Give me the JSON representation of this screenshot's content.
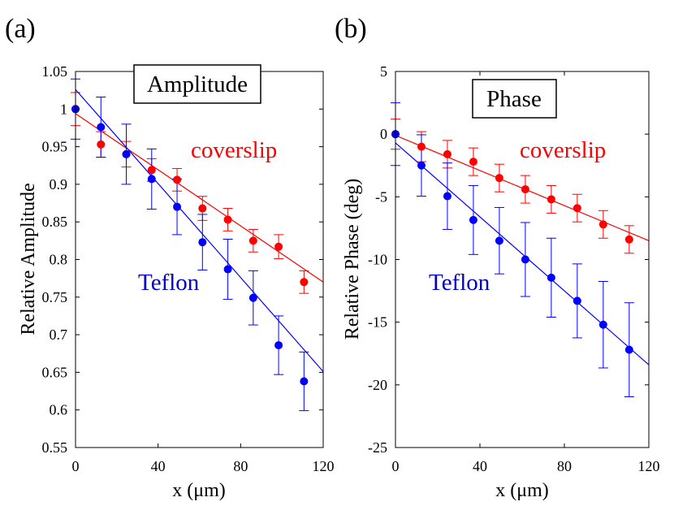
{
  "chart_data": [
    {
      "type": "scatter",
      "panel_label": "(a)",
      "title": "Amplitude",
      "xlabel": "x (μm)",
      "ylabel": "Relative Amplitude",
      "xlim": [
        0,
        120
      ],
      "ylim": [
        0.55,
        1.05
      ],
      "xticks": [
        0,
        40,
        80,
        120
      ],
      "xtick_labels": [
        "0",
        "40",
        "80",
        "120"
      ],
      "yticks": [
        0.55,
        0.6,
        0.65,
        0.7,
        0.75,
        0.8,
        0.85,
        0.9,
        0.95,
        1.0,
        1.05
      ],
      "ytick_labels": [
        "0.55",
        "0.6",
        "0.65",
        "0.7",
        "0.75",
        "0.8",
        "0.85",
        "0.9",
        "0.95",
        "1",
        "1.05"
      ],
      "grid": false,
      "series": [
        {
          "name": "coverslip",
          "color": "#ff0000",
          "x": [
            0,
            12.3,
            24.6,
            36.9,
            49.2,
            61.5,
            73.8,
            86.1,
            98.4,
            110.7
          ],
          "y": [
            1.0,
            0.953,
            0.94,
            0.919,
            0.906,
            0.868,
            0.853,
            0.825,
            0.817,
            0.77
          ],
          "err": [
            0.022,
            0.017,
            0.017,
            0.015,
            0.015,
            0.016,
            0.015,
            0.015,
            0.016,
            0.015
          ],
          "fit": {
            "x": [
              0,
              120
            ],
            "y": [
              0.994,
              0.77
            ]
          }
        },
        {
          "name": "Teflon",
          "color": "#0000ff",
          "x": [
            0,
            12.3,
            24.6,
            36.9,
            49.2,
            61.5,
            73.8,
            86.1,
            98.4,
            110.7
          ],
          "y": [
            1.0,
            0.976,
            0.94,
            0.907,
            0.87,
            0.823,
            0.787,
            0.749,
            0.686,
            0.638
          ],
          "err": [
            0.04,
            0.04,
            0.04,
            0.04,
            0.037,
            0.037,
            0.04,
            0.036,
            0.039,
            0.039
          ],
          "fit": {
            "x": [
              0,
              120
            ],
            "y": [
              1.026,
              0.651
            ]
          }
        }
      ]
    },
    {
      "type": "scatter",
      "panel_label": "(b)",
      "title": "Phase",
      "xlabel": "x (μm)",
      "ylabel": "Relative Phase (deg)",
      "xlim": [
        0,
        120
      ],
      "ylim": [
        -25,
        5
      ],
      "xticks": [
        0,
        40,
        80,
        120
      ],
      "xtick_labels": [
        "0",
        "40",
        "80",
        "120"
      ],
      "yticks": [
        -25,
        -20,
        -15,
        -10,
        -5,
        0,
        5
      ],
      "ytick_labels": [
        "-25",
        "-20",
        "-15",
        "-10",
        "-5",
        "0",
        "5"
      ],
      "grid": false,
      "series": [
        {
          "name": "coverslip",
          "color": "#ff0000",
          "x": [
            0,
            12.3,
            24.6,
            36.9,
            49.2,
            61.5,
            73.8,
            86.1,
            98.4,
            110.7
          ],
          "y": [
            0,
            -1.0,
            -1.6,
            -2.2,
            -3.5,
            -4.4,
            -5.2,
            -5.9,
            -7.2,
            -8.4
          ],
          "err": [
            1.2,
            1.2,
            1.1,
            1.1,
            1.1,
            1.1,
            1.1,
            1.1,
            1.1,
            1.1
          ],
          "fit": {
            "x": [
              0,
              120
            ],
            "y": [
              -0.1,
              -8.5
            ]
          }
        },
        {
          "name": "Teflon",
          "color": "#0000ff",
          "x": [
            0,
            12.3,
            24.6,
            36.9,
            49.2,
            61.5,
            73.8,
            86.1,
            98.4,
            110.7
          ],
          "y": [
            0,
            -2.5,
            -4.95,
            -6.85,
            -8.5,
            -10.0,
            -11.45,
            -13.3,
            -15.2,
            -17.2
          ],
          "err": [
            2.5,
            2.45,
            2.65,
            2.75,
            2.65,
            2.95,
            3.15,
            2.95,
            3.45,
            3.75
          ],
          "fit": {
            "x": [
              0,
              120
            ],
            "y": [
              -0.7,
              -18.4
            ]
          }
        }
      ]
    }
  ]
}
